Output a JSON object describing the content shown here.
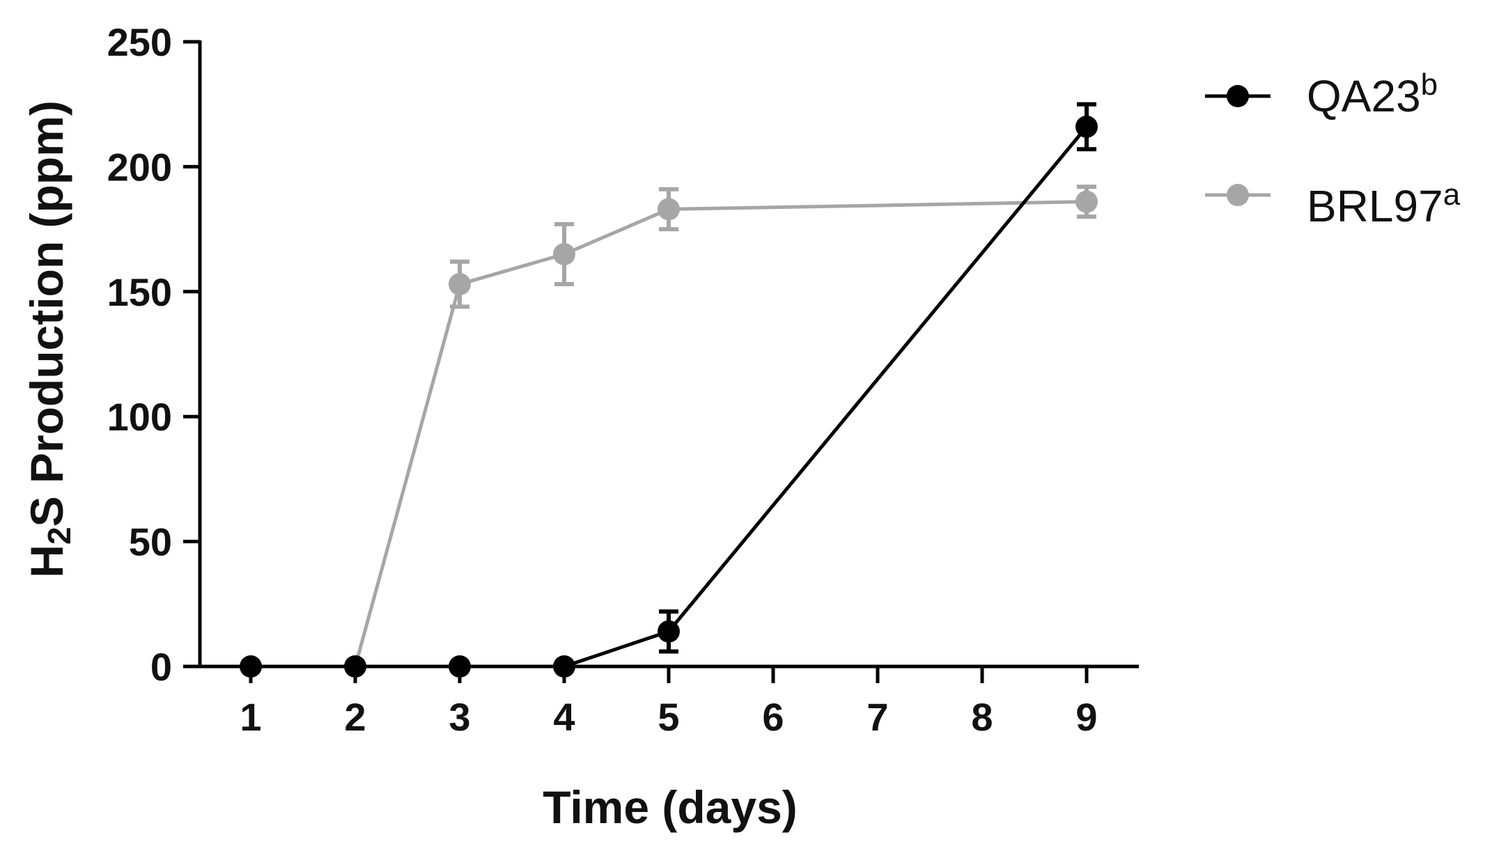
{
  "chart_data": {
    "type": "line",
    "x_categories": [
      "1",
      "2",
      "3",
      "4",
      "5",
      "6",
      "7",
      "8",
      "9"
    ],
    "xlabel": "Time (days)",
    "ylabel": {
      "pre": "H",
      "sub": "2",
      "post": "S Production  (ppm)"
    },
    "ylim": [
      0,
      250
    ],
    "yticks": [
      "0",
      "50",
      "100",
      "150",
      "200",
      "250"
    ],
    "ytick_values": [
      0,
      50,
      100,
      150,
      200,
      250
    ],
    "grid": false,
    "legend_position": "top-right",
    "series": [
      {
        "name": "QA23",
        "sup": "b",
        "color": "#000000",
        "points": [
          {
            "x": "1",
            "y": 0,
            "err": 0
          },
          {
            "x": "2",
            "y": 0,
            "err": 0
          },
          {
            "x": "3",
            "y": 0,
            "err": 0
          },
          {
            "x": "4",
            "y": 0,
            "err": 0
          },
          {
            "x": "5",
            "y": 14,
            "err": 8
          },
          {
            "x": "9",
            "y": 216,
            "err": 9
          }
        ]
      },
      {
        "name": "BRL97",
        "sup": "a",
        "color": "#a6a6a6",
        "points": [
          {
            "x": "2",
            "y": 0,
            "err": 0
          },
          {
            "x": "3",
            "y": 153,
            "err": 9
          },
          {
            "x": "4",
            "y": 165,
            "err": 12
          },
          {
            "x": "5",
            "y": 183,
            "err": 8
          },
          {
            "x": "9",
            "y": 186,
            "err": 6
          }
        ]
      }
    ]
  }
}
